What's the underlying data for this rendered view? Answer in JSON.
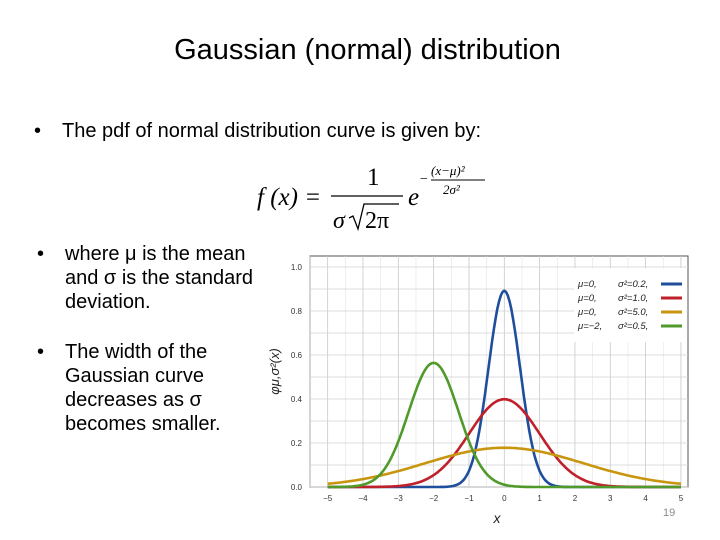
{
  "slide": {
    "title": "Gaussian (normal) distribution",
    "bullets": [
      "The pdf of normal distribution curve is given by:",
      "where μ is the mean and σ is the standard deviation.",
      "The width of the Gaussian curve decreases as σ becomes smaller."
    ],
    "bullet_marker": "•",
    "page_number": "19"
  },
  "formula": {
    "lhs": "f (x) =",
    "numerator": "1",
    "denominator_sigma": "σ",
    "denominator_rest": "2π",
    "base": "e",
    "exp_minus": "−",
    "exp_numerator": "(x−μ)²",
    "exp_denominator": "2σ²"
  },
  "chart_data": {
    "type": "line",
    "xlabel": "x",
    "ylabel": "φμ,σ²(x)",
    "xlim": [
      -5.5,
      5.2
    ],
    "ylim": [
      0,
      1.05
    ],
    "x_ticks": [
      -5,
      -4,
      -3,
      -2,
      -1,
      0,
      1,
      2,
      3,
      4,
      5
    ],
    "x_tick_labels": [
      "−5",
      "−4",
      "−3",
      "−2",
      "−1",
      "0",
      "1",
      "2",
      "3",
      "4",
      "5"
    ],
    "y_ticks": [
      0,
      0.2,
      0.4,
      0.6,
      0.8,
      1.0
    ],
    "y_tick_labels": [
      "0.0",
      "0.2",
      "0.4",
      "0.6",
      "0.8",
      "1.0"
    ],
    "grid": true,
    "legend_position": "top-right",
    "series": [
      {
        "mu": 0,
        "var": 0.2,
        "label_mu": "μ=0,",
        "label_var": "σ²=0.2,",
        "color": "#1f4e9c"
      },
      {
        "mu": 0,
        "var": 1.0,
        "label_mu": "μ=0,",
        "label_var": "σ²=1.0,",
        "color": "#c0202a"
      },
      {
        "mu": 0,
        "var": 5.0,
        "label_mu": "μ=0,",
        "label_var": "σ²=5.0,",
        "color": "#c8960e"
      },
      {
        "mu": -2,
        "var": 0.5,
        "label_mu": "μ=−2,",
        "label_var": "σ²=0.5,",
        "color": "#4f9a2a"
      }
    ],
    "x": [
      -5,
      -4.5,
      -4,
      -3.5,
      -3,
      -2.5,
      -2,
      -1.5,
      -1,
      -0.5,
      0,
      0.5,
      1,
      1.5,
      2,
      2.5,
      3,
      3.5,
      4,
      4.5,
      5
    ],
    "values": {
      "mu0_var0.2": [
        0,
        0,
        0,
        0,
        0,
        0,
        0,
        0,
        0.007,
        0.478,
        0.892,
        0.478,
        0.007,
        0,
        0,
        0,
        0,
        0,
        0,
        0,
        0
      ],
      "mu0_var1.0": [
        0,
        0,
        0,
        0.001,
        0.004,
        0.018,
        0.054,
        0.13,
        0.242,
        0.352,
        0.399,
        0.352,
        0.242,
        0.13,
        0.054,
        0.018,
        0.004,
        0.001,
        0,
        0,
        0
      ],
      "mu0_var5.0": [
        0.015,
        0.024,
        0.036,
        0.052,
        0.073,
        0.095,
        0.12,
        0.142,
        0.161,
        0.174,
        0.178,
        0.174,
        0.161,
        0.142,
        0.12,
        0.095,
        0.073,
        0.052,
        0.036,
        0.024,
        0.015
      ],
      "mu-2_var0.5": [
        0,
        0,
        0.01,
        0.059,
        0.208,
        0.44,
        0.564,
        0.44,
        0.208,
        0.059,
        0.01,
        0.001,
        0,
        0,
        0,
        0,
        0,
        0,
        0,
        0,
        0
      ]
    }
  }
}
